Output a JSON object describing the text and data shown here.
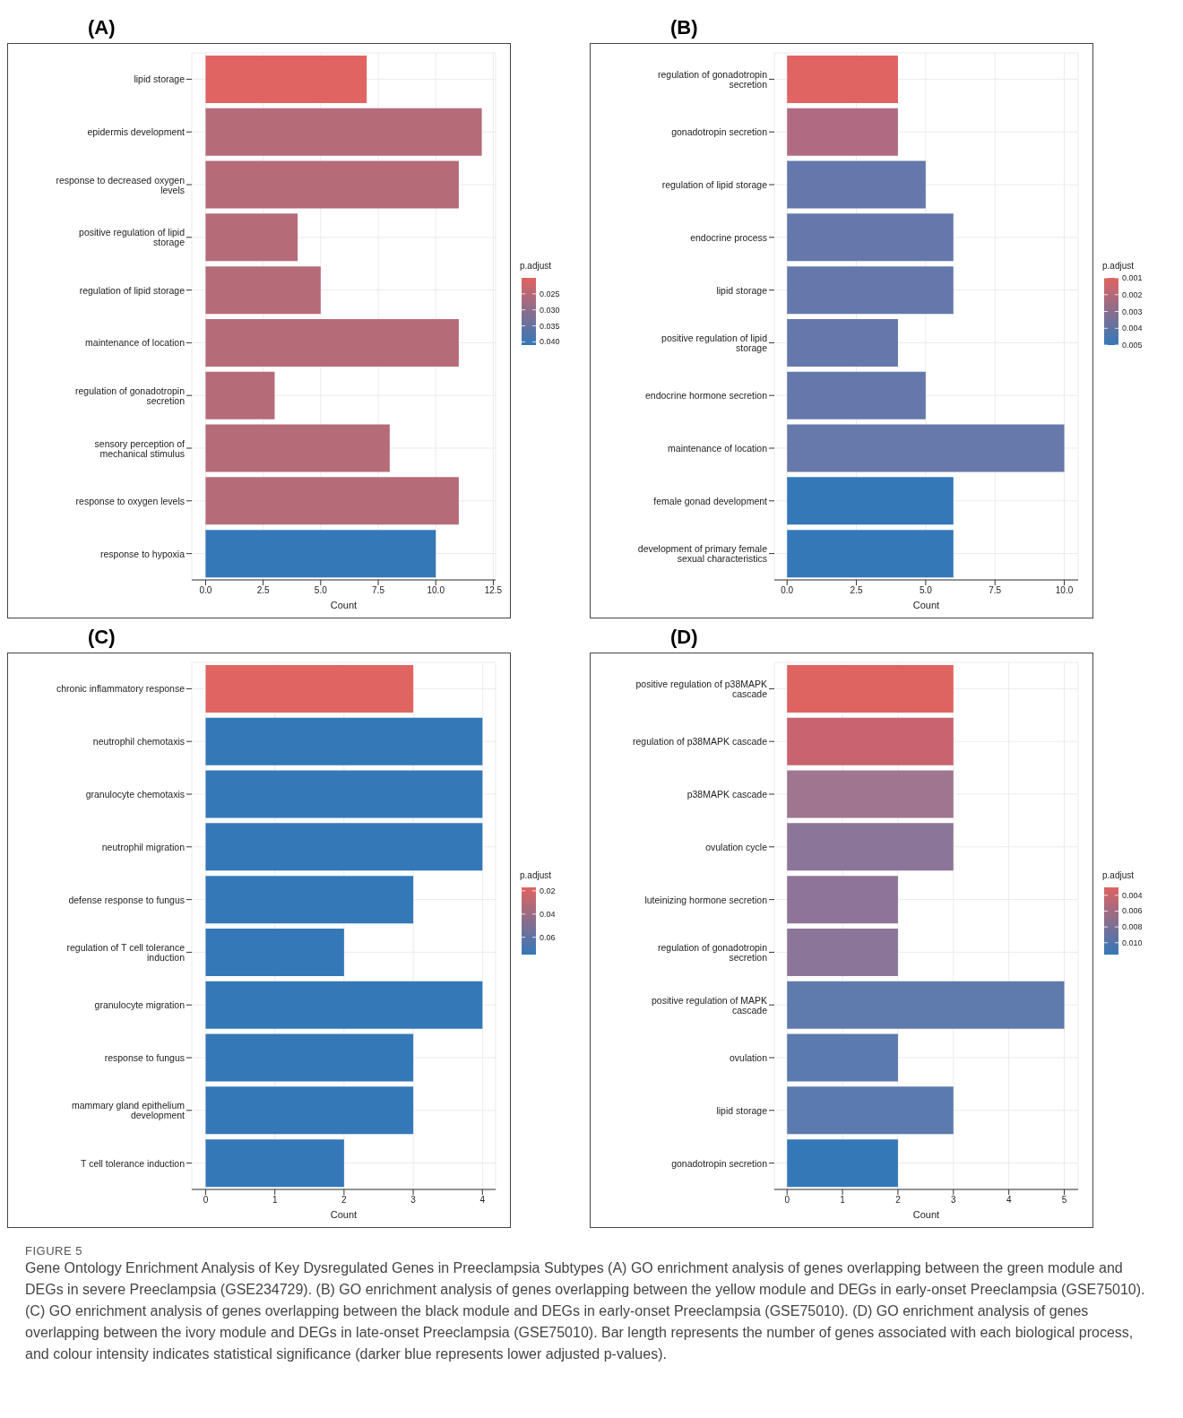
{
  "chart_data": [
    {
      "type": "bar",
      "orientation": "horizontal",
      "title": "(A)",
      "xlabel": "Count",
      "categories": [
        "lipid storage",
        "epidermis development",
        "response to decreased oxygen levels",
        "positive regulation of lipid storage",
        "regulation of lipid storage",
        "maintenance of location",
        "regulation of gonadotropin secretion",
        "sensory perception of mechanical stimulus",
        "response to oxygen levels",
        "response to hypoxia"
      ],
      "values": [
        7,
        12,
        11,
        4,
        5,
        11,
        3,
        8,
        11,
        10
      ],
      "colors": [
        "#e06461",
        "#b56b78",
        "#b56b78",
        "#b56b78",
        "#b56b78",
        "#b56b78",
        "#b56b78",
        "#b56b78",
        "#b56b78",
        "#3478b8"
      ],
      "xlim": [
        -0.6,
        12.6
      ],
      "xticks": [
        {
          "value": 0,
          "label": "0.0"
        },
        {
          "value": 2.5,
          "label": "2.5"
        },
        {
          "value": 5,
          "label": "5.0"
        },
        {
          "value": 7.5,
          "label": "7.5"
        },
        {
          "value": 10,
          "label": "10.0"
        },
        {
          "value": 12.5,
          "label": "12.5"
        }
      ],
      "grid": true,
      "clabel": "p.adjust",
      "clim": [
        0.02,
        0.041
      ],
      "cticks": [
        0.025,
        {
          "value": 0.03,
          "label": "0.030"
        },
        0.035,
        {
          "value": 0.04,
          "label": "0.040"
        }
      ]
    },
    {
      "type": "bar",
      "orientation": "horizontal",
      "title": "(B)",
      "xlabel": "Count",
      "categories": [
        "regulation of gonadotropin secretion",
        "gonadotropin secretion",
        "regulation of lipid storage",
        "endocrine process",
        "lipid storage",
        "positive regulation of lipid storage",
        "endocrine hormone secretion",
        "maintenance of location",
        "female gonad development",
        "development of primary female sexual characteristics"
      ],
      "values": [
        4,
        4,
        5,
        6,
        6,
        4,
        5,
        10,
        6,
        6
      ],
      "colors": [
        "#e06461",
        "#b06b82",
        "#6478ab",
        "#6478ab",
        "#6478ab",
        "#6478ab",
        "#6478ab",
        "#6779aa",
        "#3478b8",
        "#3478b8"
      ],
      "xlim": [
        -0.46,
        10.5
      ],
      "xticks": [
        {
          "value": 0,
          "label": "0.0"
        },
        {
          "value": 2.5,
          "label": "2.5"
        },
        {
          "value": 5,
          "label": "5.0"
        },
        {
          "value": 7.5,
          "label": "7.5"
        },
        {
          "value": 10,
          "label": "10.0"
        }
      ],
      "grid": true,
      "clabel": "p.adjust",
      "clim": [
        0.001,
        0.005
      ],
      "cticks": [
        0.001,
        0.002,
        0.003,
        0.004,
        0.005
      ]
    },
    {
      "type": "bar",
      "orientation": "horizontal",
      "title": "(C)",
      "xlabel": "Count",
      "categories": [
        "chronic inflammatory response",
        "neutrophil chemotaxis",
        "granulocyte chemotaxis",
        "neutrophil migration",
        "defense response to fungus",
        "regulation of T cell tolerance induction",
        "granulocyte migration",
        "response to fungus",
        "mammary gland epithelium development",
        "T cell tolerance induction"
      ],
      "values": [
        3,
        4,
        4,
        4,
        3,
        2,
        4,
        3,
        3,
        2
      ],
      "colors": [
        "#e06461",
        "#3478b8",
        "#3478b8",
        "#3478b8",
        "#3478b8",
        "#3478b8",
        "#3478b8",
        "#3478b8",
        "#3478b8",
        "#3478b8"
      ],
      "xlim": [
        -0.2,
        4.19
      ],
      "xticks": [
        0,
        1,
        2,
        3,
        4
      ],
      "grid": true,
      "clabel": "p.adjust",
      "clim": [
        0.017,
        0.075
      ],
      "cticks": [
        0.02,
        0.04,
        0.06
      ]
    },
    {
      "type": "bar",
      "orientation": "horizontal",
      "title": "(D)",
      "xlabel": "Count",
      "categories": [
        "positive regulation of p38MAPK cascade",
        "regulation of p38MAPK cascade",
        "p38MAPK cascade",
        "ovulation cycle",
        "luteinizing hormone secretion",
        "regulation of gonadotropin secretion",
        "positive regulation of MAPK cascade",
        "ovulation",
        "lipid storage",
        "gonadotropin secretion"
      ],
      "values": [
        3,
        3,
        3,
        3,
        2,
        2,
        5,
        2,
        3,
        2
      ],
      "colors": [
        "#dd6461",
        "#c8646f",
        "#a0758f",
        "#8c7698",
        "#8e7597",
        "#8c7698",
        "#5f7aac",
        "#5b7aad",
        "#5b7aad",
        "#3478b8"
      ],
      "xlim": [
        -0.23,
        5.25
      ],
      "xticks": [
        0,
        1,
        2,
        3,
        4,
        5
      ],
      "grid": true,
      "clabel": "p.adjust",
      "clim": [
        0.003,
        0.0115
      ],
      "cticks": [
        0.004,
        0.006,
        0.008,
        {
          "value": 0.01,
          "label": "0.010"
        }
      ],
      "annotations": [
        "FIGURE 5",
        "Gene Ontology Enrichment Analysis of Key Dysregulated Genes in Preeclampsia Subtypes (A) GO enrichment analysis of genes overlapping between the green module and DEGs in severe Preeclampsia (GSE234729). (B) GO enrichment analysis of genes overlapping between the yellow module and DEGs in early-onset Preeclampsia (GSE75010). (C) GO enrichment analysis of genes overlapping between the black module and DEGs in early-onset Preeclampsia (GSE75010). (D) GO enrichment analysis of genes overlapping between the ivory module and DEGs in late-onset Preeclampsia (GSE75010). Bar length represents the number of genes associated with each biological process, and colour intensity indicates statistical significance (darker blue represents lower adjusted p-values)."
      ]
    }
  ]
}
